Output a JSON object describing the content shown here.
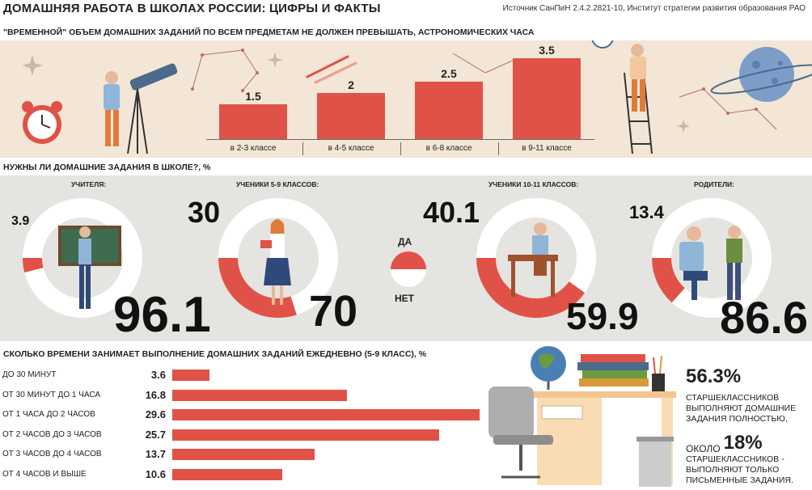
{
  "header": {
    "title": "ДОМАШНЯЯ РАБОТА В ШКОЛАХ РОССИИ: ЦИФРЫ И ФАКТЫ",
    "source": "Источник СанПиН 2.4.2.2821-10, Институт стратегии развития образования РАО"
  },
  "section1": {
    "title": "\"ВРЕМЕННОЙ\" ОБЪЕМ ДОМАШНИХ ЗАДАНИЙ ПО ВСЕМ ПРЕДМЕТАМ НЕ ДОЛЖЕН ПРЕВЫШАТЬ, АСТРОНОМИЧЕСКИХ ЧАСА"
  },
  "section2": {
    "title": "НУЖНЫ ЛИ ДОМАШНИЕ ЗАДАНИЯ В ШКОЛЕ?, %",
    "legend_yes": "ДА",
    "legend_no": "НЕТ"
  },
  "section3": {
    "title": "СКОЛЬКО ВРЕМЕНИ ЗАНИМАЕТ ВЫПОЛНЕНИЕ ДОМАШНИХ ЗАДАНИЙ ЕЖЕДНЕВНО (5-9 КЛАСС), %"
  },
  "facts": {
    "fact1_value": "56.3%",
    "fact1_text": "СТАРШЕКЛАССНИКОВ ВЫПОЛНЯЮТ ДОМАШНИЕ ЗАДАНИЯ ПОЛНОСТЬЮ,",
    "fact2_prefix": "ОКОЛО",
    "fact2_value": "18%",
    "fact2_text": "СТАРШЕКЛАССНИКОВ - ВЫПОЛНЯЮТ ТОЛЬКО ПИСЬМЕННЫЕ ЗАДАНИЯ."
  },
  "colors": {
    "accent": "#e05247",
    "ring_bg": "#ffffff",
    "band_warm": "#f3e6d6",
    "band_grey": "#e5e4e0"
  },
  "chart_data": [
    {
      "type": "bar",
      "categories": [
        "в 2-3 классе",
        "в 4-5 классе",
        "в 6-8 классе",
        "в 9-11 классе"
      ],
      "values": [
        1.5,
        2,
        2.5,
        3.5
      ],
      "value_labels": [
        "1.5",
        "2",
        "2.5",
        "3.5"
      ],
      "ylim": [
        0,
        3.5
      ],
      "grid": false
    },
    {
      "type": "pie",
      "subtype": "donut",
      "groups": [
        {
          "name": "УЧИТЕЛЯ:",
          "yes": 3.9,
          "no": 96.1,
          "yes_label": "3.9",
          "no_label": "96.1"
        },
        {
          "name": "УЧЕНИКИ 5-9 КЛАССОВ:",
          "yes": 30,
          "no": 70,
          "yes_label": "30",
          "no_label": "70"
        },
        {
          "name": "УЧЕНИКИ 10-11 КЛАССОВ:",
          "yes": 40.1,
          "no": 59.9,
          "yes_label": "40.1",
          "no_label": "59.9"
        },
        {
          "name": "РОДИТЕЛИ:",
          "yes": 13.4,
          "no": 86.6,
          "yes_label": "13.4",
          "no_label": "86.6"
        }
      ],
      "legend": [
        "ДА",
        "НЕТ"
      ]
    },
    {
      "type": "bar",
      "orientation": "horizontal",
      "categories": [
        "ДО 30 МИНУТ",
        "ОТ 30 МИНУТ ДО 1 ЧАСА",
        "ОТ 1 ЧАСА ДО 2 ЧАСОВ",
        "ОТ 2 ЧАСОВ ДО 3 ЧАСОВ",
        "ОТ 3 ЧАСОВ ДО 4 ЧАСОВ",
        "ОТ 4 ЧАСОВ И ВЫШЕ"
      ],
      "values": [
        3.6,
        16.8,
        29.6,
        25.7,
        13.7,
        10.6
      ],
      "value_labels": [
        "3.6",
        "16.8",
        "29.6",
        "25.7",
        "13.7",
        "10.6"
      ],
      "xlim": [
        0,
        29.6
      ],
      "grid": false
    }
  ]
}
